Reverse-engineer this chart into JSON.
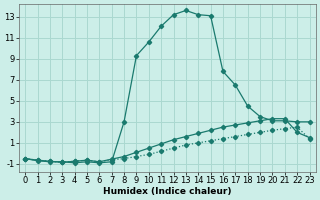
{
  "title": "",
  "xlabel": "Humidex (Indice chaleur)",
  "xlim": [
    -0.5,
    23.5
  ],
  "ylim": [
    -1.8,
    14.2
  ],
  "yticks": [
    -1,
    1,
    3,
    5,
    7,
    9,
    11,
    13
  ],
  "xticks": [
    0,
    1,
    2,
    3,
    4,
    5,
    6,
    7,
    8,
    9,
    10,
    11,
    12,
    13,
    14,
    15,
    16,
    17,
    18,
    19,
    20,
    21,
    22,
    23
  ],
  "bg_color": "#cceee8",
  "line_color": "#1a7a6e",
  "grid_color": "#aad8d0",
  "line1_x": [
    0,
    1,
    2,
    3,
    4,
    5,
    6,
    7,
    8,
    9,
    10,
    11,
    12,
    13,
    14,
    15,
    16,
    17,
    18,
    19,
    20,
    21,
    22,
    23
  ],
  "line1_y": [
    -0.5,
    -0.7,
    -0.8,
    -0.8,
    -0.9,
    -0.8,
    -0.9,
    -0.8,
    3.0,
    9.3,
    10.6,
    12.1,
    13.2,
    13.6,
    13.2,
    13.1,
    7.8,
    6.5,
    4.5,
    3.5,
    3.1,
    3.1,
    3.0,
    3.0
  ],
  "line2_x": [
    0,
    1,
    2,
    3,
    4,
    5,
    6,
    7,
    8,
    9,
    10,
    11,
    12,
    13,
    14,
    15,
    16,
    17,
    18,
    19,
    20,
    21,
    22,
    23
  ],
  "line2_y": [
    -0.5,
    -0.65,
    -0.75,
    -0.85,
    -0.75,
    -0.65,
    -0.8,
    -0.55,
    -0.3,
    0.1,
    0.5,
    0.9,
    1.3,
    1.6,
    1.9,
    2.2,
    2.5,
    2.7,
    2.9,
    3.1,
    3.3,
    3.3,
    2.0,
    1.5
  ],
  "line3_x": [
    0,
    1,
    2,
    3,
    4,
    5,
    6,
    7,
    8,
    9,
    10,
    11,
    12,
    13,
    14,
    15,
    16,
    17,
    18,
    19,
    20,
    21,
    22,
    23
  ],
  "line3_y": [
    -0.5,
    -0.65,
    -0.75,
    -0.85,
    -0.75,
    -0.65,
    -0.8,
    -0.6,
    -0.5,
    -0.3,
    -0.1,
    0.2,
    0.5,
    0.8,
    1.0,
    1.2,
    1.4,
    1.6,
    1.8,
    2.0,
    2.2,
    2.35,
    2.5,
    1.4
  ]
}
